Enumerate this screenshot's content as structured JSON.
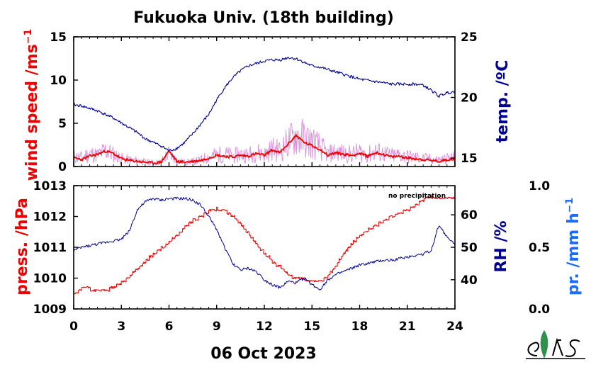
{
  "title": "Fukuoka Univ. (18th building)",
  "date_label": "06 Oct 2023",
  "note": "no precipitation",
  "colors": {
    "wind": "#ee0000",
    "wind_gust": "#d890d8",
    "temp": "#000090",
    "press": "#ee0000",
    "rh": "#000090",
    "precip": "#1a6cff"
  },
  "chart_data": [
    {
      "type": "line",
      "panel": "top",
      "xlim": [
        0,
        24
      ],
      "x_ticks": [
        "0",
        "3",
        "6",
        "9",
        "12",
        "15",
        "18",
        "21",
        "24"
      ],
      "left_axis": {
        "label": "wind speed /ms",
        "label_sup": "−1",
        "ylim": [
          0,
          15
        ],
        "ticks": [
          "0",
          "5",
          "10",
          "15"
        ]
      },
      "right_axis": {
        "label": "temp. /ºC",
        "ylim": [
          14.3,
          25
        ],
        "ticks": [
          "15",
          "20",
          "25"
        ]
      },
      "series": [
        {
          "axis": "left",
          "style": "gust",
          "x": [
            0,
            0.5,
            1,
            1.5,
            2,
            2.5,
            3,
            3.5,
            4,
            4.5,
            5,
            5.5,
            6,
            6.5,
            7,
            7.5,
            8,
            8.5,
            9,
            9.5,
            10,
            10.5,
            11,
            11.5,
            12,
            12.5,
            13,
            13.5,
            14,
            14.5,
            15,
            15.5,
            16,
            16.5,
            17,
            17.5,
            18,
            18.5,
            19,
            19.5,
            20,
            20.5,
            21,
            21.5,
            22,
            22.5,
            23,
            23.5,
            24
          ],
          "values": [
            2,
            1.8,
            2.6,
            2.2,
            3.2,
            2.4,
            1.6,
            1.3,
            1.2,
            0.9,
            0.8,
            0.9,
            2.6,
            1.1,
            0.9,
            1.0,
            1.3,
            2.0,
            2.3,
            2.5,
            2.1,
            2.4,
            2.3,
            2.9,
            2.4,
            3.5,
            3.2,
            4.8,
            6.1,
            5.6,
            4.9,
            3.9,
            2.4,
            2.9,
            2.6,
            2.4,
            2.9,
            2.3,
            3.0,
            2.6,
            2.2,
            2.3,
            2.0,
            1.8,
            1.6,
            1.5,
            1.3,
            1.6,
            1.8
          ]
        },
        {
          "axis": "left",
          "style": "mean",
          "x": [
            0,
            0.5,
            1,
            1.5,
            2,
            2.5,
            3,
            3.5,
            4,
            4.5,
            5,
            5.5,
            6,
            6.5,
            7,
            7.5,
            8,
            8.5,
            9,
            9.5,
            10,
            10.5,
            11,
            11.5,
            12,
            12.5,
            13,
            13.5,
            14,
            14.5,
            15,
            15.5,
            16,
            16.5,
            17,
            17.5,
            18,
            18.5,
            19,
            19.5,
            20,
            20.5,
            21,
            21.5,
            22,
            22.5,
            23,
            23.5,
            24
          ],
          "values": [
            1.0,
            0.8,
            1.2,
            1.4,
            1.8,
            1.5,
            0.9,
            0.7,
            0.6,
            0.5,
            0.4,
            0.5,
            1.8,
            0.6,
            0.5,
            0.6,
            0.7,
            1.0,
            1.3,
            1.2,
            1.1,
            1.3,
            1.2,
            1.5,
            1.3,
            1.9,
            1.6,
            2.6,
            3.6,
            2.8,
            2.4,
            2.0,
            1.3,
            1.6,
            1.4,
            1.3,
            1.5,
            1.2,
            1.6,
            1.4,
            1.1,
            1.2,
            1.0,
            0.9,
            0.8,
            0.7,
            0.6,
            0.8,
            0.9
          ]
        },
        {
          "axis": "right",
          "style": "temp",
          "x": [
            0,
            0.5,
            1,
            1.5,
            2,
            2.5,
            3,
            3.5,
            4,
            4.5,
            5,
            5.5,
            6,
            6.5,
            7,
            7.5,
            8,
            8.5,
            9,
            9.5,
            10,
            10.5,
            11,
            11.5,
            12,
            12.5,
            13,
            13.5,
            14,
            14.5,
            15,
            15.5,
            16,
            16.5,
            17,
            17.5,
            18,
            18.5,
            19,
            19.5,
            20,
            20.5,
            21,
            21.5,
            22,
            22.5,
            23,
            23.5,
            24
          ],
          "values": [
            19.4,
            19.3,
            19.1,
            18.9,
            18.6,
            18.3,
            17.9,
            17.5,
            17.1,
            16.6,
            16.3,
            16.0,
            15.6,
            15.8,
            16.3,
            17.0,
            17.8,
            18.6,
            19.8,
            20.8,
            21.6,
            22.2,
            22.6,
            22.8,
            23.0,
            23.1,
            23.1,
            23.3,
            23.2,
            22.9,
            22.6,
            22.5,
            22.3,
            22.1,
            21.9,
            21.7,
            21.5,
            21.4,
            21.3,
            21.2,
            21.1,
            21.1,
            21.1,
            21.1,
            21.0,
            20.6,
            20.1,
            20.4,
            20.5
          ]
        }
      ]
    },
    {
      "type": "line",
      "panel": "bottom",
      "xlim": [
        0,
        24
      ],
      "x_ticks": [
        "0",
        "3",
        "6",
        "9",
        "12",
        "15",
        "18",
        "21",
        "24"
      ],
      "left_axis": {
        "label": "press. /hPa",
        "ylim": [
          1009,
          1013
        ],
        "ticks": [
          "1009",
          "1010",
          "1011",
          "1012",
          "1013"
        ]
      },
      "right_axis": {
        "label": "RH /%",
        "ylim": [
          31,
          69
        ],
        "ticks": [
          "40",
          "50",
          "60"
        ]
      },
      "far_right_axis": {
        "label": "pr. /mm h",
        "label_sup": "−1",
        "ylim": [
          0,
          1
        ],
        "ticks": [
          "0.0",
          "0.5",
          "1.0"
        ]
      },
      "series": [
        {
          "axis": "left",
          "style": "press",
          "x": [
            0,
            0.5,
            1,
            1.5,
            2,
            2.5,
            3,
            3.5,
            4,
            4.5,
            5,
            5.5,
            6,
            6.5,
            7,
            7.5,
            8,
            8.5,
            9,
            9.5,
            10,
            10.5,
            11,
            11.5,
            12,
            12.5,
            13,
            13.5,
            14,
            14.5,
            15,
            15.5,
            16,
            16.5,
            17,
            17.5,
            18,
            18.5,
            19,
            19.5,
            20,
            20.5,
            21,
            21.5,
            22,
            22.5,
            23,
            23.5,
            24
          ],
          "values": [
            1009.45,
            1009.65,
            1009.65,
            1009.6,
            1009.6,
            1009.7,
            1009.85,
            1010.05,
            1010.3,
            1010.55,
            1010.75,
            1010.95,
            1011.15,
            1011.4,
            1011.65,
            1011.85,
            1012.0,
            1012.15,
            1012.25,
            1012.2,
            1012.0,
            1011.75,
            1011.45,
            1011.1,
            1010.8,
            1010.55,
            1010.35,
            1010.1,
            1010.0,
            1009.95,
            1009.9,
            1009.85,
            1010.05,
            1010.4,
            1010.8,
            1011.1,
            1011.35,
            1011.55,
            1011.7,
            1011.85,
            1012.0,
            1012.1,
            1012.2,
            1012.35,
            1012.55,
            1012.65,
            1012.6,
            1012.6,
            1012.55
          ]
        },
        {
          "axis": "right",
          "style": "rh",
          "x": [
            0,
            0.5,
            1,
            1.5,
            2,
            2.5,
            3,
            3.5,
            4,
            4.5,
            5,
            5.5,
            6,
            6.5,
            7,
            7.5,
            8,
            8.5,
            9,
            9.5,
            10,
            10.5,
            11,
            11.5,
            12,
            12.5,
            13,
            13.5,
            14,
            14.5,
            15,
            15.5,
            16,
            16.5,
            17,
            17.5,
            18,
            18.5,
            19,
            19.5,
            20,
            20.5,
            21,
            21.5,
            22,
            22.5,
            23,
            23.5,
            24
          ],
          "values": [
            49,
            50,
            50.5,
            51,
            51.5,
            52,
            52.5,
            55,
            61.5,
            64,
            65,
            64.5,
            65,
            65,
            65,
            64.5,
            63,
            59.5,
            55.5,
            50,
            45,
            43,
            43.5,
            42.5,
            40,
            38.5,
            37.5,
            39.5,
            39,
            40.5,
            38.5,
            37,
            40,
            41.5,
            42.5,
            43.5,
            44.5,
            45,
            45.5,
            46,
            46,
            46.5,
            47,
            47.5,
            48,
            49,
            57,
            53,
            51
          ]
        }
      ]
    }
  ]
}
